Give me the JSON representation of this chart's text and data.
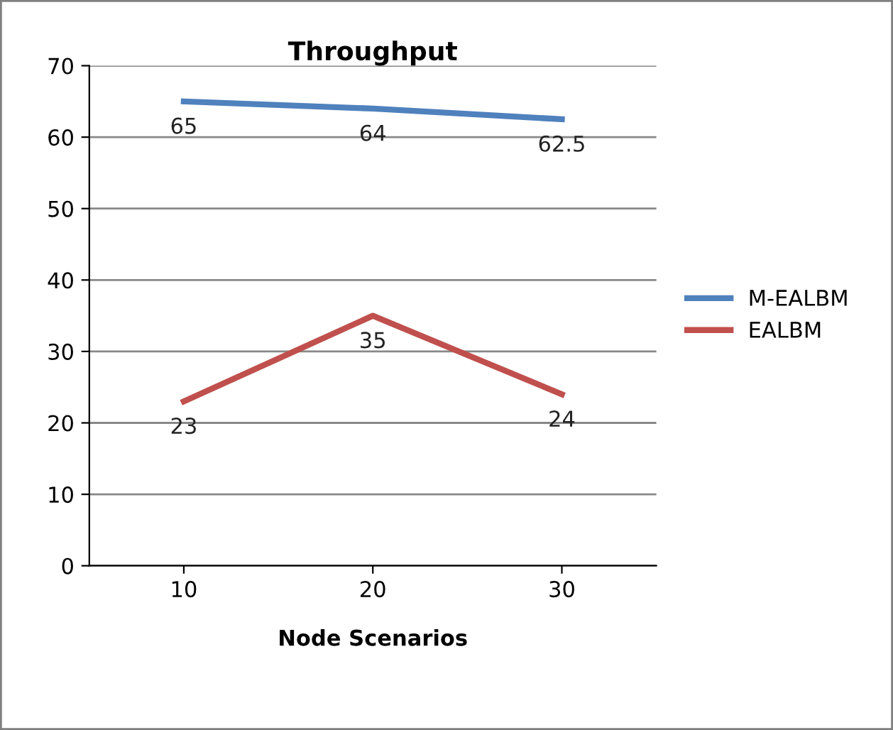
{
  "chart_data": {
    "type": "line",
    "title": "Throughput",
    "xlabel": "Node Scenarios",
    "categories": [
      "10",
      "20",
      "30"
    ],
    "series": [
      {
        "name": "M-EALBM",
        "color": "#4f81bd",
        "values": [
          65,
          64,
          62.5
        ]
      },
      {
        "name": "EALBM",
        "color": "#c0504d",
        "values": [
          23,
          35,
          24
        ]
      }
    ],
    "ylim": [
      0,
      70
    ],
    "yticks": [
      0,
      10,
      20,
      30,
      40,
      50,
      60,
      70
    ],
    "grid": "y",
    "legend": "right",
    "data_labels": true,
    "marker": "none",
    "line_style": "solid"
  }
}
